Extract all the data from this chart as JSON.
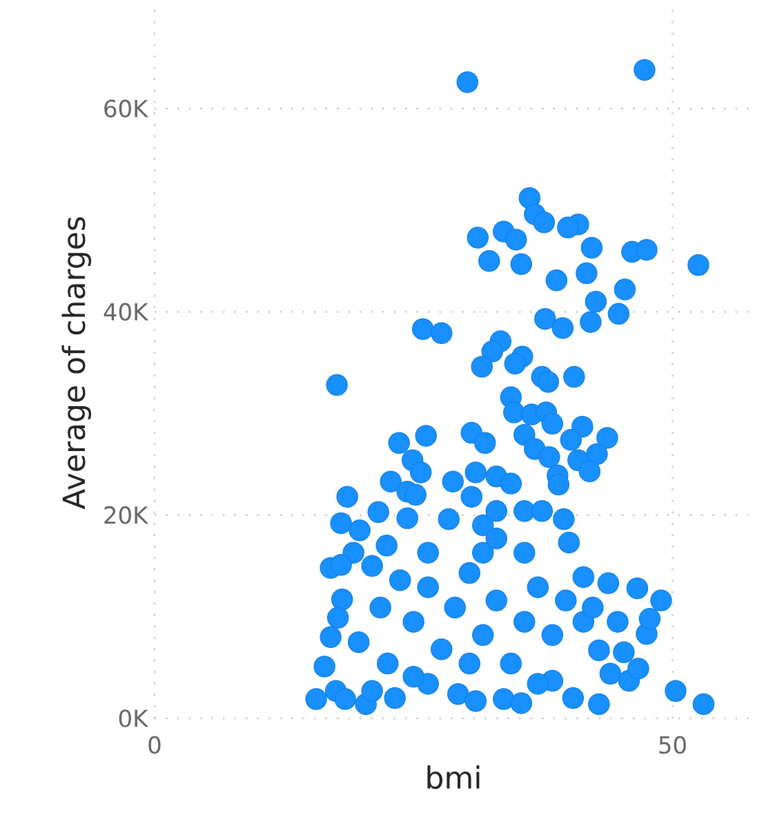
{
  "chart_data": {
    "type": "scatter",
    "xlabel": "bmi",
    "ylabel": "Average of charges",
    "xlim": [
      0,
      57.7
    ],
    "ylim": [
      0,
      70
    ],
    "xticks": [
      0,
      50
    ],
    "yticks": [
      {
        "value": 0,
        "label": "0K"
      },
      {
        "value": 20,
        "label": "20K"
      },
      {
        "value": 40,
        "label": "40K"
      },
      {
        "value": 60,
        "label": "60K"
      }
    ],
    "grid": true,
    "series": [
      {
        "color": "#1890ff",
        "x": [
          47.3,
          30.2,
          36.2,
          36.7,
          37.6,
          40.9,
          39.9,
          31.2,
          33.7,
          34.9,
          32.3,
          35.4,
          42.2,
          46.1,
          47.5,
          52.5,
          41.7,
          38.8,
          45.4,
          42.6,
          37.7,
          39.4,
          42.1,
          44.8,
          25.9,
          27.7,
          33.4,
          32.6,
          35.5,
          34.8,
          31.6,
          17.6,
          37.4,
          38.0,
          40.5,
          34.4,
          34.7,
          36.4,
          37.8,
          38.4,
          41.3,
          30.6,
          26.2,
          23.6,
          31.9,
          35.7,
          43.7,
          40.2,
          36.7,
          42.7,
          24.9,
          38.1,
          40.9,
          42.0,
          25.7,
          31.0,
          38.9,
          22.8,
          28.8,
          39.0,
          24.4,
          25.2,
          30.6,
          18.6,
          33.0,
          34.4,
          35.7,
          37.4,
          39.5,
          18.0,
          21.6,
          24.4,
          28.4,
          19.8,
          19.2,
          40.0,
          17.0,
          18.0,
          22.4,
          26.4,
          31.7,
          35.7,
          18.1,
          17.7,
          17.0,
          16.4,
          15.6,
          17.5,
          18.4,
          20.4,
          23.2,
          26.4,
          29.3,
          31.0,
          33.7,
          35.4,
          38.4,
          40.4,
          42.9,
          44.0,
          45.8,
          46.7,
          45.3,
          47.5,
          47.8,
          48.9,
          46.6,
          43.8,
          44.7,
          42.9,
          41.4,
          41.4,
          50.3,
          53.0,
          19.7,
          21.8,
          22.5,
          25.0,
          26.4,
          27.7,
          29.0,
          30.4,
          31.7,
          33.0,
          34.4,
          35.7,
          37.0,
          38.4,
          39.7,
          21.0,
          23.7,
          31.7,
          33.0,
          33.0,
          25.0,
          30.4,
          37.0,
          21.0,
          42.3
        ],
        "values": [
          63.8,
          62.6,
          51.2,
          49.6,
          48.8,
          48.6,
          48.3,
          47.3,
          47.9,
          47.1,
          45.0,
          44.7,
          46.3,
          45.9,
          46.1,
          44.6,
          43.8,
          43.1,
          42.2,
          41.0,
          39.3,
          38.4,
          39.0,
          39.8,
          38.3,
          37.9,
          37.1,
          36.1,
          35.6,
          34.9,
          34.6,
          32.8,
          33.6,
          33.1,
          33.6,
          31.6,
          30.1,
          29.9,
          30.1,
          29.0,
          28.7,
          28.1,
          27.8,
          27.1,
          27.1,
          27.9,
          27.6,
          27.4,
          26.5,
          26.0,
          25.4,
          25.7,
          25.4,
          24.3,
          24.2,
          24.2,
          23.9,
          23.3,
          23.3,
          23.0,
          22.3,
          22.0,
          21.8,
          21.8,
          23.8,
          23.1,
          20.4,
          20.4,
          19.6,
          19.2,
          20.3,
          19.7,
          19.6,
          18.5,
          16.3,
          17.3,
          14.8,
          15.1,
          17.0,
          16.3,
          16.3,
          16.3,
          11.7,
          9.9,
          8.0,
          5.1,
          1.9,
          2.7,
          1.9,
          1.4,
          2.0,
          3.4,
          2.4,
          1.7,
          1.9,
          1.5,
          3.7,
          2.0,
          1.4,
          4.4,
          3.7,
          4.9,
          6.5,
          8.3,
          9.8,
          11.6,
          12.8,
          13.3,
          9.5,
          6.7,
          9.5,
          13.9,
          2.7,
          1.4,
          7.5,
          10.9,
          5.4,
          9.5,
          12.9,
          6.8,
          10.9,
          14.3,
          8.2,
          11.6,
          5.4,
          9.5,
          12.9,
          8.2,
          11.6,
          15.0,
          13.6,
          19.0,
          20.4,
          17.7,
          4.1,
          5.4,
          3.4,
          2.7,
          10.9
        ]
      }
    ]
  }
}
